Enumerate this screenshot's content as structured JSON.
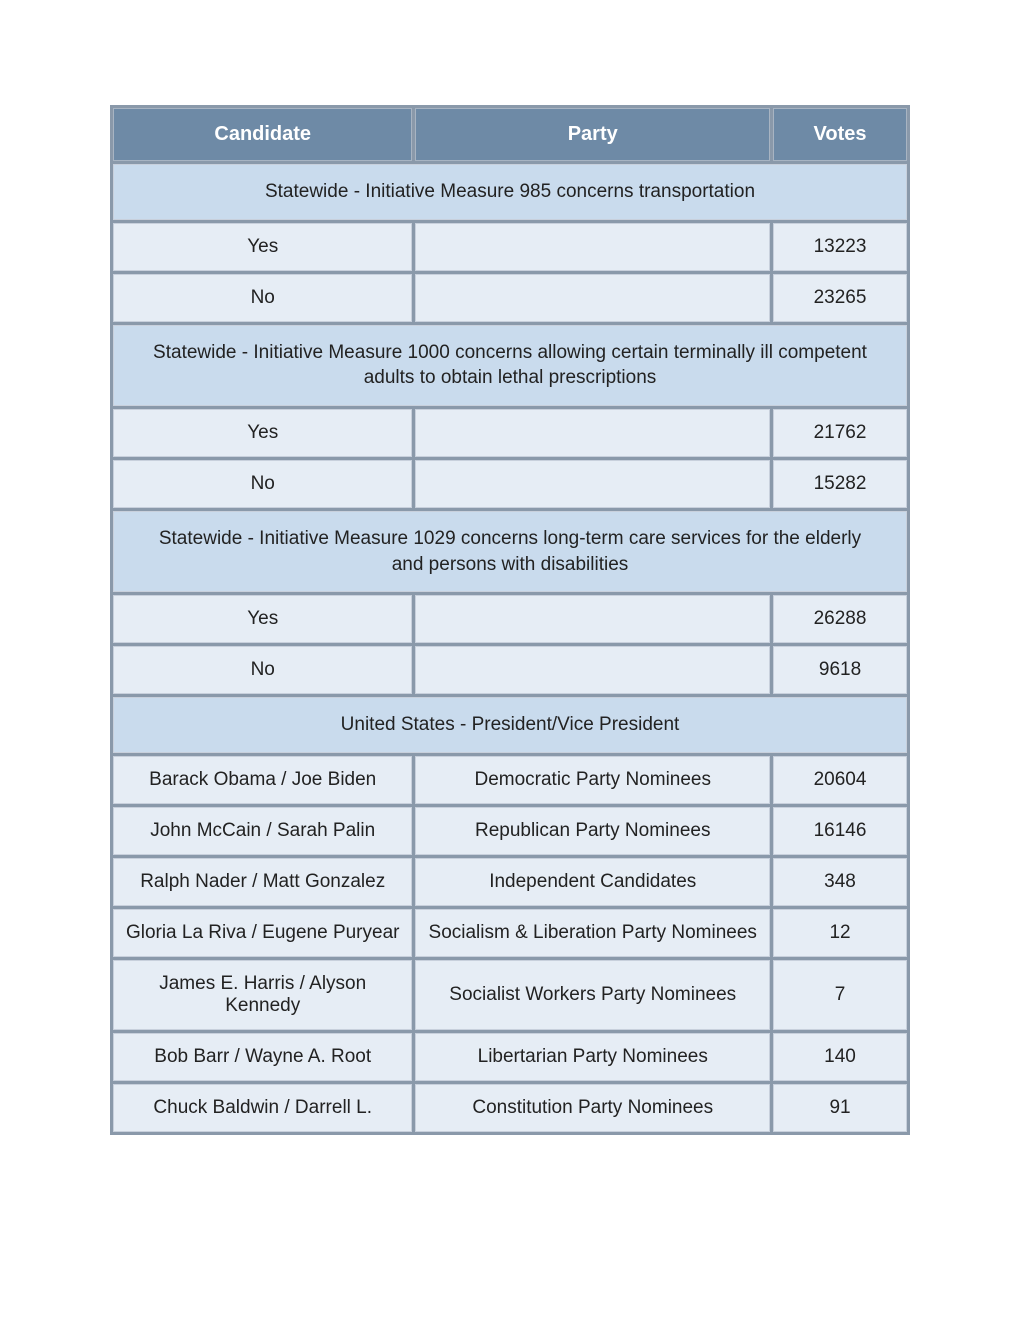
{
  "table": {
    "header_bg": "#6e8aa6",
    "header_fg": "#ffffff",
    "section_bg": "#c9dbed",
    "cell_bg": "#e6edf5",
    "spacer_bg": "#8a99aa",
    "border_color": "#c8d0dc",
    "font_family": "Verdana, Geneva, sans-serif",
    "header_fontsize": 20,
    "cell_fontsize": 19,
    "columns": {
      "candidate": "Candidate",
      "party": "Party",
      "votes": "Votes"
    },
    "sections": [
      {
        "title": "Statewide - Initiative Measure 985 concerns transportation",
        "rows": [
          {
            "candidate": "Yes",
            "party": "",
            "votes": "13223"
          },
          {
            "candidate": "No",
            "party": "",
            "votes": "23265"
          }
        ]
      },
      {
        "title": "Statewide - Initiative Measure 1000 concerns allowing certain terminally ill competent adults to obtain lethal prescriptions",
        "rows": [
          {
            "candidate": "Yes",
            "party": "",
            "votes": "21762"
          },
          {
            "candidate": "No",
            "party": "",
            "votes": "15282"
          }
        ]
      },
      {
        "title": "Statewide - Initiative Measure 1029 concerns long-term care services for the elderly and persons with disabilities",
        "rows": [
          {
            "candidate": "Yes",
            "party": "",
            "votes": "26288"
          },
          {
            "candidate": "No",
            "party": "",
            "votes": "9618"
          }
        ]
      },
      {
        "title": "United States - President/Vice President",
        "rows": [
          {
            "candidate": "Barack Obama / Joe Biden",
            "party": "Democratic Party Nominees",
            "votes": "20604"
          },
          {
            "candidate": "John McCain / Sarah Palin",
            "party": "Republican Party Nominees",
            "votes": "16146"
          },
          {
            "candidate": "Ralph Nader / Matt Gonzalez",
            "party": "Independent Candidates",
            "votes": "348"
          },
          {
            "candidate": "Gloria La Riva / Eugene Puryear",
            "party": "Socialism & Liberation Party Nominees",
            "votes": "12"
          },
          {
            "candidate": "James E. Harris / Alyson Kennedy",
            "party": "Socialist Workers Party Nominees",
            "votes": "7"
          },
          {
            "candidate": "Bob Barr / Wayne A. Root",
            "party": "Libertarian Party Nominees",
            "votes": "140"
          },
          {
            "candidate": "Chuck Baldwin / Darrell L.",
            "party": "Constitution Party Nominees",
            "votes": "91"
          }
        ]
      }
    ]
  }
}
